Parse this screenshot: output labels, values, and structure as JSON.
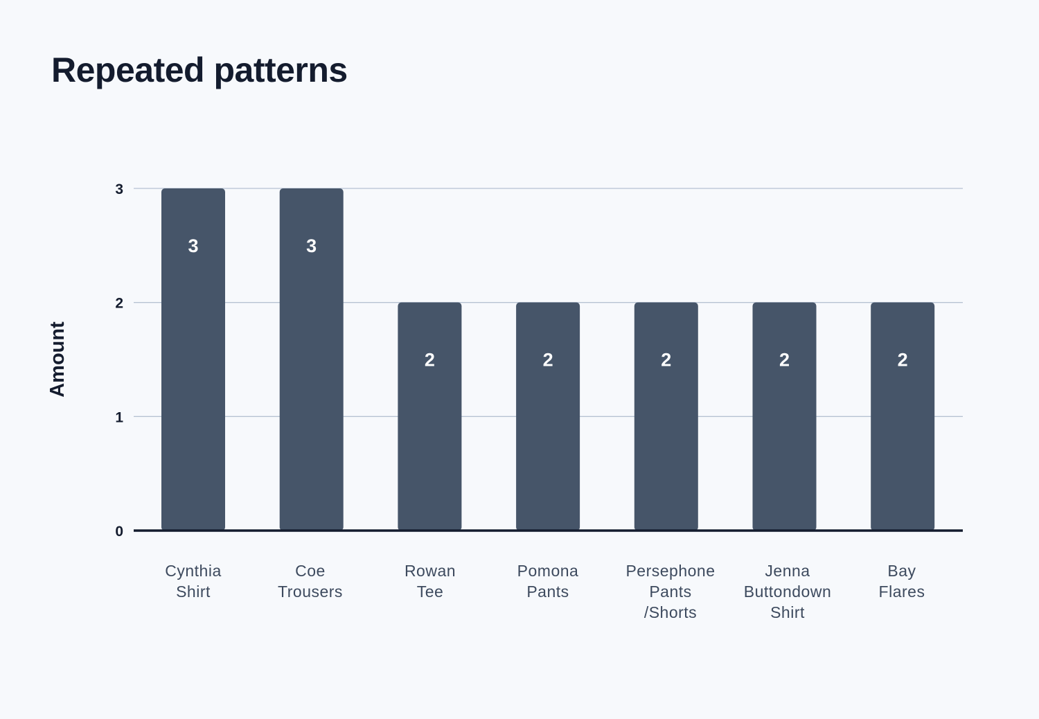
{
  "colors": {
    "background": "#f7f9fc",
    "bar": "#465569",
    "gridline": "#b6c2d2",
    "baseline": "#141c2e",
    "value_label": "#ffffff"
  },
  "chart_data": {
    "type": "bar",
    "title": "Repeated patterns",
    "xlabel": "",
    "ylabel": "Amount",
    "categories": [
      [
        "Cynthia",
        "Shirt"
      ],
      [
        "Coe",
        "Trousers"
      ],
      [
        "Rowan",
        "Tee"
      ],
      [
        "Pomona",
        "Pants"
      ],
      [
        "Persephone",
        "Pants",
        "/Shorts"
      ],
      [
        "Jenna",
        "Buttondown",
        "Shirt"
      ],
      [
        "Bay",
        "Flares"
      ]
    ],
    "values": [
      3,
      3,
      2,
      2,
      2,
      2,
      2
    ],
    "ylim": [
      0,
      3
    ],
    "yticks": [
      "0",
      "1",
      "2",
      "3"
    ],
    "grid": true,
    "data_labels": true
  }
}
